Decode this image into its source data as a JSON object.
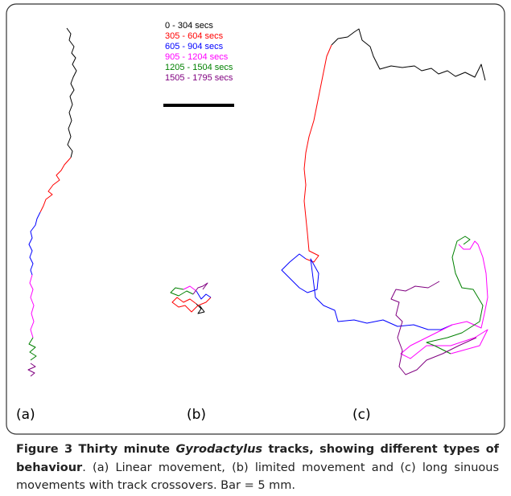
{
  "figure": {
    "legend": [
      {
        "label": "0 - 304 secs",
        "color": "#000000"
      },
      {
        "label": "305 - 604 secs",
        "color": "#ff0000"
      },
      {
        "label": "605 - 904 secs",
        "color": "#0000ff"
      },
      {
        "label": "905 - 1204 secs",
        "color": "#ff00ff"
      },
      {
        "label": "1205 - 1504 secs",
        "color": "#008000"
      },
      {
        "label": "1505 - 1795 secs",
        "color": "#800080"
      }
    ],
    "panels": [
      "(a)",
      "(b)",
      "(c)"
    ],
    "caption": {
      "title_parts": [
        "Figure 3 Thirty minute ",
        "Gyrodactylus",
        " tracks, showing different types of behaviour"
      ],
      "text": ". (a) Linear movement, (b) limited movement and (c) long sinuous movements with track crossovers. Bar = 5 mm."
    }
  }
}
